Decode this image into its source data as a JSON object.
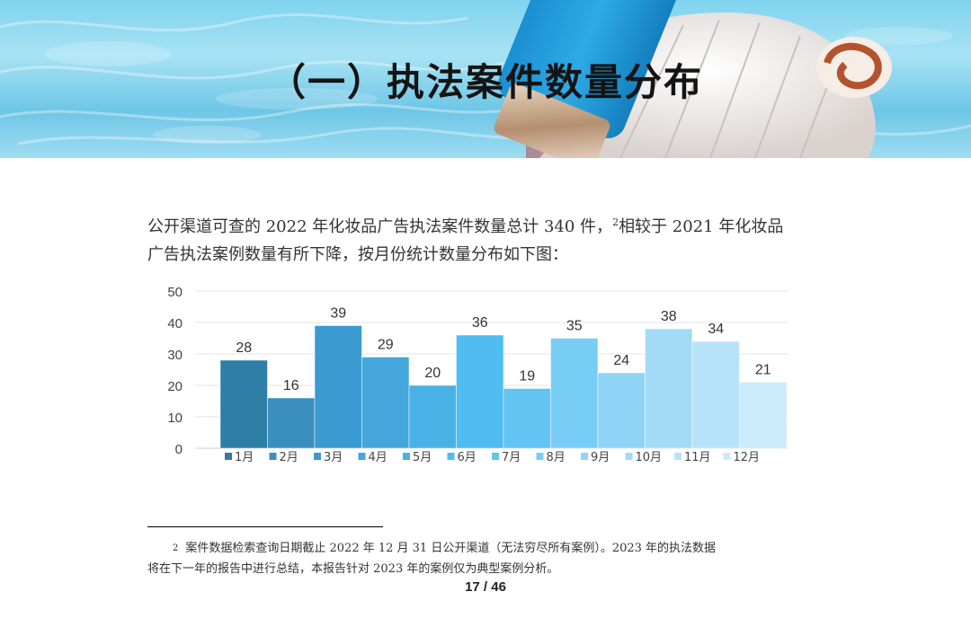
{
  "banner": {
    "title": "（一）执法案件数量分布"
  },
  "paragraph": {
    "line1_before_sup": "公开渠道可查的 2022 年化妆品广告执法案件数量总计 340 件，",
    "sup": "2",
    "line1_after_sup": "相较于 2021 年化妆品",
    "line2": "广告执法案例数量有所下降，按月份统计数量分布如下图："
  },
  "chart_data": {
    "type": "bar",
    "categories": [
      "1月",
      "2月",
      "3月",
      "4月",
      "5月",
      "6月",
      "7月",
      "8月",
      "9月",
      "10月",
      "11月",
      "12月"
    ],
    "values": [
      28,
      16,
      39,
      29,
      20,
      36,
      19,
      35,
      24,
      38,
      34,
      21
    ],
    "colors": [
      "#2e7ea6",
      "#3a8fbe",
      "#3b9bd0",
      "#44a6db",
      "#4ab1e6",
      "#4fbdf2",
      "#62c4f3",
      "#78cdf5",
      "#8fd4f6",
      "#a3dbf7",
      "#b7e3f9",
      "#cbebfb"
    ],
    "title": "",
    "xlabel": "",
    "ylabel": "",
    "ylim": [
      0,
      50
    ],
    "yticks": [
      0,
      10,
      20,
      30,
      40,
      50
    ],
    "grid": true,
    "legend_position": "bottom"
  },
  "footnote": {
    "mark": "2",
    "line1": "案件数据检索查询日期截止 2022 年 12 月 31 日公开渠道（无法穷尽所有案例）。2023 年的执法数据",
    "line2": "将在下一年的报告中进行总结，本报告针对 2023 年的案例仅为典型案例分析。"
  },
  "page": {
    "number": "17 / 46"
  }
}
